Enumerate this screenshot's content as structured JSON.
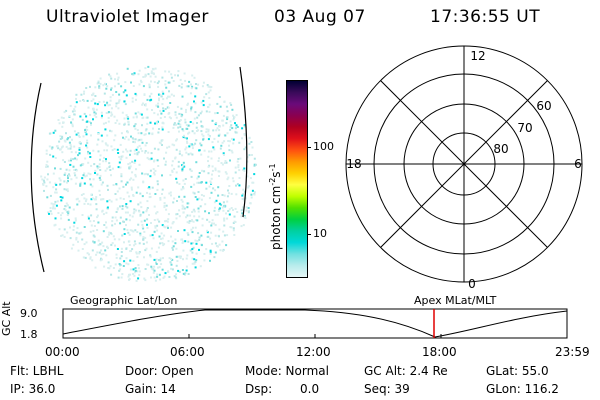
{
  "header": {
    "instrument": "Ultraviolet Imager",
    "date": "03 Aug 07",
    "time": "17:36:55 UT"
  },
  "colorbar": {
    "label": "photon cm",
    "label_exp1": "-2",
    "label_s": "s",
    "label_exp2": "-1",
    "ticks": [
      "100",
      "10"
    ],
    "colors": [
      "#000033",
      "#3a0a5a",
      "#6a0a7a",
      "#8a0050",
      "#b00020",
      "#e0101a",
      "#ff5010",
      "#ff9a00",
      "#ffd000",
      "#ffff40",
      "#c0ff00",
      "#50e000",
      "#00d040",
      "#00d0a0",
      "#00d8d8",
      "#70e0e0",
      "#b8ecec",
      "#e6f6f6"
    ]
  },
  "polar_plot": {
    "mlt_labels": {
      "top": "12",
      "left": "18",
      "right": "6",
      "bottom": "0"
    },
    "lat_labels": [
      "60",
      "70",
      "80"
    ]
  },
  "altitude_panel": {
    "axis_label": "GC Alt",
    "y_ticks": [
      "9.0",
      "1.8"
    ],
    "left_title": "Geographic Lat/Lon",
    "right_title": "Apex  MLat/MLT",
    "x_ticks": [
      "00:00",
      "06:00",
      "12:00",
      "18:00",
      "23:59"
    ],
    "marker_color": "#e00000"
  },
  "status": {
    "filter": "Flt: LBHL",
    "ip": "IP: 36.0",
    "door": "Door: Open",
    "gain": "Gain: 14",
    "mode": "Mode: Normal",
    "dsp_label": "Dsp:",
    "dsp_value": "0.0",
    "gc_alt": "GC Alt: 2.4 Re",
    "seq": "Seq: 39",
    "glat": "GLat:  55.0",
    "glon": "GLon: 116.2"
  }
}
